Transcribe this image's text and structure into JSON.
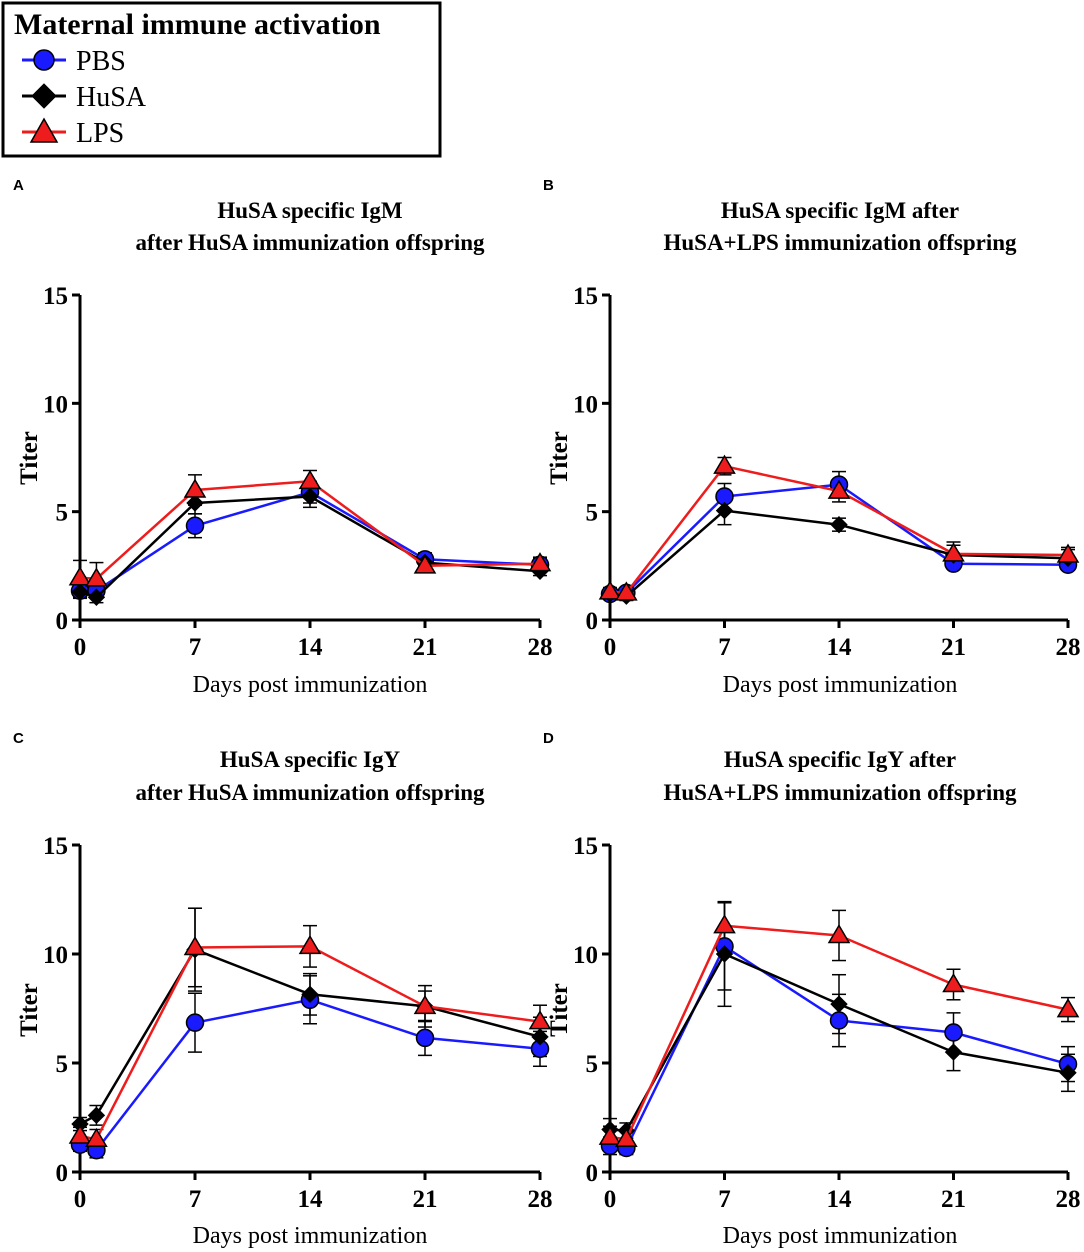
{
  "legend": {
    "title": "Maternal immune activation",
    "entries": [
      "PBS",
      "HuSA",
      "LPS"
    ]
  },
  "colors": {
    "PBS": "#1a1aff",
    "HuSA": "#000000",
    "LPS": "#ee1c1c",
    "axis": "#000000"
  },
  "chart_data": [
    {
      "panel": "A",
      "type": "line",
      "title": [
        "HuSA specific IgM",
        "after HuSA immunization offspring"
      ],
      "xlabel": "Days post immunization",
      "ylabel": "Titer",
      "xlim": [
        0,
        28
      ],
      "ylim": [
        0,
        15
      ],
      "xticks": [
        0,
        7,
        14,
        21,
        28
      ],
      "yticks": [
        0,
        5,
        10,
        15
      ],
      "x": [
        0,
        1,
        7,
        14,
        21,
        28
      ],
      "series": [
        {
          "name": "PBS",
          "marker": "circle",
          "values": [
            1.35,
            1.35,
            4.35,
            5.9,
            2.8,
            2.55
          ],
          "errors": [
            0.3,
            0.3,
            0.55,
            0.5,
            0.3,
            0.3
          ]
        },
        {
          "name": "HuSA",
          "marker": "diamond",
          "values": [
            1.3,
            1.05,
            5.4,
            5.7,
            2.65,
            2.25
          ],
          "errors": [
            0.3,
            0.25,
            0.5,
            0.5,
            0.3,
            0.2
          ]
        },
        {
          "name": "LPS",
          "marker": "triangle",
          "values": [
            1.95,
            1.9,
            6.0,
            6.4,
            2.5,
            2.6
          ],
          "errors": [
            0.8,
            0.75,
            0.7,
            0.5,
            0.25,
            0.3
          ]
        }
      ]
    },
    {
      "panel": "B",
      "type": "line",
      "title": [
        "HuSA specific IgM after",
        "HuSA+LPS immunization offspring"
      ],
      "xlabel": "Days post immunization",
      "ylabel": "Titer",
      "xlim": [
        0,
        28
      ],
      "ylim": [
        0,
        15
      ],
      "xticks": [
        0,
        7,
        14,
        21,
        28
      ],
      "yticks": [
        0,
        5,
        10,
        15
      ],
      "x": [
        0,
        1,
        7,
        14,
        21,
        28
      ],
      "series": [
        {
          "name": "PBS",
          "marker": "circle",
          "values": [
            1.2,
            1.25,
            5.7,
            6.25,
            2.6,
            2.55
          ],
          "errors": [
            0.2,
            0.2,
            0.6,
            0.6,
            0.25,
            0.2
          ]
        },
        {
          "name": "HuSA",
          "marker": "diamond",
          "values": [
            1.2,
            1.1,
            5.05,
            4.4,
            3.0,
            2.85
          ],
          "errors": [
            0.2,
            0.2,
            0.65,
            0.3,
            0.6,
            0.4
          ]
        },
        {
          "name": "LPS",
          "marker": "triangle",
          "values": [
            1.3,
            1.25,
            7.1,
            5.95,
            3.05,
            3.0
          ],
          "errors": [
            0.2,
            0.2,
            0.4,
            0.5,
            0.4,
            0.35
          ]
        }
      ]
    },
    {
      "panel": "C",
      "type": "line",
      "title": [
        "HuSA specific IgY",
        "after HuSA immunization offspring"
      ],
      "xlabel": "Days post immunization",
      "ylabel": "Titer",
      "xlim": [
        0,
        28
      ],
      "ylim": [
        0,
        15
      ],
      "xticks": [
        0,
        7,
        14,
        21,
        28
      ],
      "yticks": [
        0,
        5,
        10,
        15
      ],
      "x": [
        0,
        1,
        7,
        14,
        21,
        28
      ],
      "series": [
        {
          "name": "PBS",
          "marker": "circle",
          "values": [
            1.25,
            1.0,
            6.85,
            7.9,
            6.15,
            5.65
          ],
          "errors": [
            0.3,
            0.35,
            1.35,
            1.1,
            0.8,
            0.8
          ]
        },
        {
          "name": "HuSA",
          "marker": "diamond",
          "values": [
            2.2,
            2.6,
            10.2,
            8.15,
            7.6,
            6.2
          ],
          "errors": [
            0.3,
            0.45,
            1.9,
            0.95,
            0.95,
            0.9
          ]
        },
        {
          "name": "LPS",
          "marker": "triangle",
          "values": [
            1.65,
            1.5,
            10.3,
            10.35,
            7.6,
            6.9
          ],
          "errors": [
            0.4,
            0.45,
            1.8,
            0.95,
            0.7,
            0.75
          ]
        }
      ]
    },
    {
      "panel": "D",
      "type": "line",
      "title": [
        "HuSA specific IgY after",
        "HuSA+LPS immunization offspring"
      ],
      "xlabel": "Days post immunization",
      "ylabel": "Titer",
      "xlim": [
        0,
        28
      ],
      "ylim": [
        0,
        15
      ],
      "xticks": [
        0,
        7,
        14,
        21,
        28
      ],
      "yticks": [
        0,
        5,
        10,
        15
      ],
      "x": [
        0,
        1,
        7,
        14,
        21,
        28
      ],
      "series": [
        {
          "name": "PBS",
          "marker": "circle",
          "values": [
            1.2,
            1.1,
            10.35,
            6.95,
            6.4,
            4.95
          ],
          "errors": [
            0.4,
            0.3,
            2.0,
            1.2,
            0.9,
            0.8
          ]
        },
        {
          "name": "HuSA",
          "marker": "diamond",
          "values": [
            1.95,
            1.9,
            10.0,
            7.7,
            5.5,
            4.55
          ],
          "errors": [
            0.5,
            0.35,
            2.4,
            1.35,
            0.85,
            0.85
          ]
        },
        {
          "name": "LPS",
          "marker": "triangle",
          "values": [
            1.6,
            1.5,
            11.3,
            10.85,
            8.6,
            7.45
          ],
          "errors": [
            0.5,
            0.4,
            1.1,
            1.15,
            0.7,
            0.55
          ]
        }
      ]
    }
  ]
}
